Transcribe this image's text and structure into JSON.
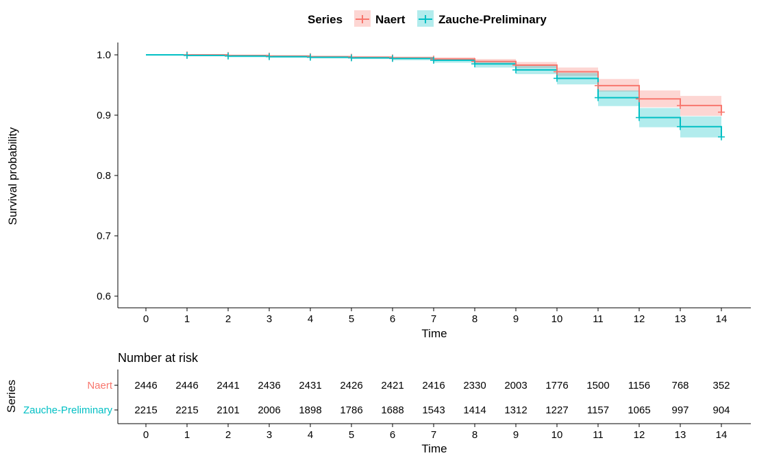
{
  "chart_data": [
    {
      "type": "line",
      "subtype": "step (Kaplan-Meier survival curve with confidence bands and censor marks)",
      "xlabel": "Time",
      "ylabel": "Survival probability",
      "xlim": [
        0,
        14
      ],
      "ylim": [
        0.6,
        1.0
      ],
      "x_ticks": [
        0,
        1,
        2,
        3,
        4,
        5,
        6,
        7,
        8,
        9,
        10,
        11,
        12,
        13,
        14
      ],
      "y_ticks": [
        "0.6",
        "0.7",
        "0.8",
        "0.9",
        "1.0"
      ],
      "grid": false,
      "legend": {
        "title": "Series",
        "position": "top"
      },
      "series": [
        {
          "name": "Naert",
          "color": "#F8766D",
          "band_color": "#F8766D",
          "x": [
            0,
            1,
            2,
            3,
            4,
            5,
            6,
            7,
            8,
            9,
            10,
            11,
            12,
            13,
            14
          ],
          "survival": [
            1.0,
            1.0,
            0.999,
            0.998,
            0.997,
            0.996,
            0.995,
            0.993,
            0.989,
            0.983,
            0.972,
            0.949,
            0.927,
            0.916,
            0.905
          ],
          "lower": [
            1.0,
            0.999,
            0.998,
            0.997,
            0.995,
            0.994,
            0.993,
            0.99,
            0.985,
            0.978,
            0.965,
            0.939,
            0.913,
            0.899,
            0.88
          ],
          "upper": [
            1.0,
            1.0,
            1.0,
            0.999,
            0.998,
            0.998,
            0.997,
            0.996,
            0.993,
            0.988,
            0.979,
            0.96,
            0.941,
            0.932,
            0.93
          ]
        },
        {
          "name": "Zauche-Preliminary",
          "color": "#00BFC4",
          "band_color": "#00BFC4",
          "x": [
            0,
            1,
            2,
            3,
            4,
            5,
            6,
            7,
            8,
            9,
            10,
            11,
            12,
            13,
            14
          ],
          "survival": [
            1.0,
            0.999,
            0.998,
            0.997,
            0.996,
            0.995,
            0.994,
            0.991,
            0.985,
            0.975,
            0.961,
            0.929,
            0.896,
            0.881,
            0.864
          ],
          "lower": [
            1.0,
            0.998,
            0.996,
            0.995,
            0.994,
            0.993,
            0.991,
            0.987,
            0.979,
            0.968,
            0.951,
            0.915,
            0.88,
            0.863,
            0.845
          ],
          "upper": [
            1.0,
            1.0,
            0.999,
            0.999,
            0.998,
            0.997,
            0.996,
            0.994,
            0.99,
            0.982,
            0.97,
            0.941,
            0.912,
            0.898,
            0.88
          ]
        }
      ]
    },
    {
      "type": "table",
      "title": "Number at risk",
      "row_axis_label": "Series",
      "xlabel": "Time",
      "x_ticks": [
        0,
        1,
        2,
        3,
        4,
        5,
        6,
        7,
        8,
        9,
        10,
        11,
        12,
        13,
        14
      ],
      "rows": [
        {
          "name": "Naert",
          "color": "#F8766D",
          "values": [
            2446,
            2446,
            2441,
            2436,
            2431,
            2426,
            2421,
            2416,
            2330,
            2003,
            1776,
            1500,
            1156,
            768,
            352
          ]
        },
        {
          "name": "Zauche-Preliminary",
          "color": "#00BFC4",
          "values": [
            2215,
            2215,
            2101,
            2006,
            1898,
            1786,
            1688,
            1543,
            1414,
            1312,
            1227,
            1157,
            1065,
            997,
            904
          ]
        }
      ]
    }
  ]
}
